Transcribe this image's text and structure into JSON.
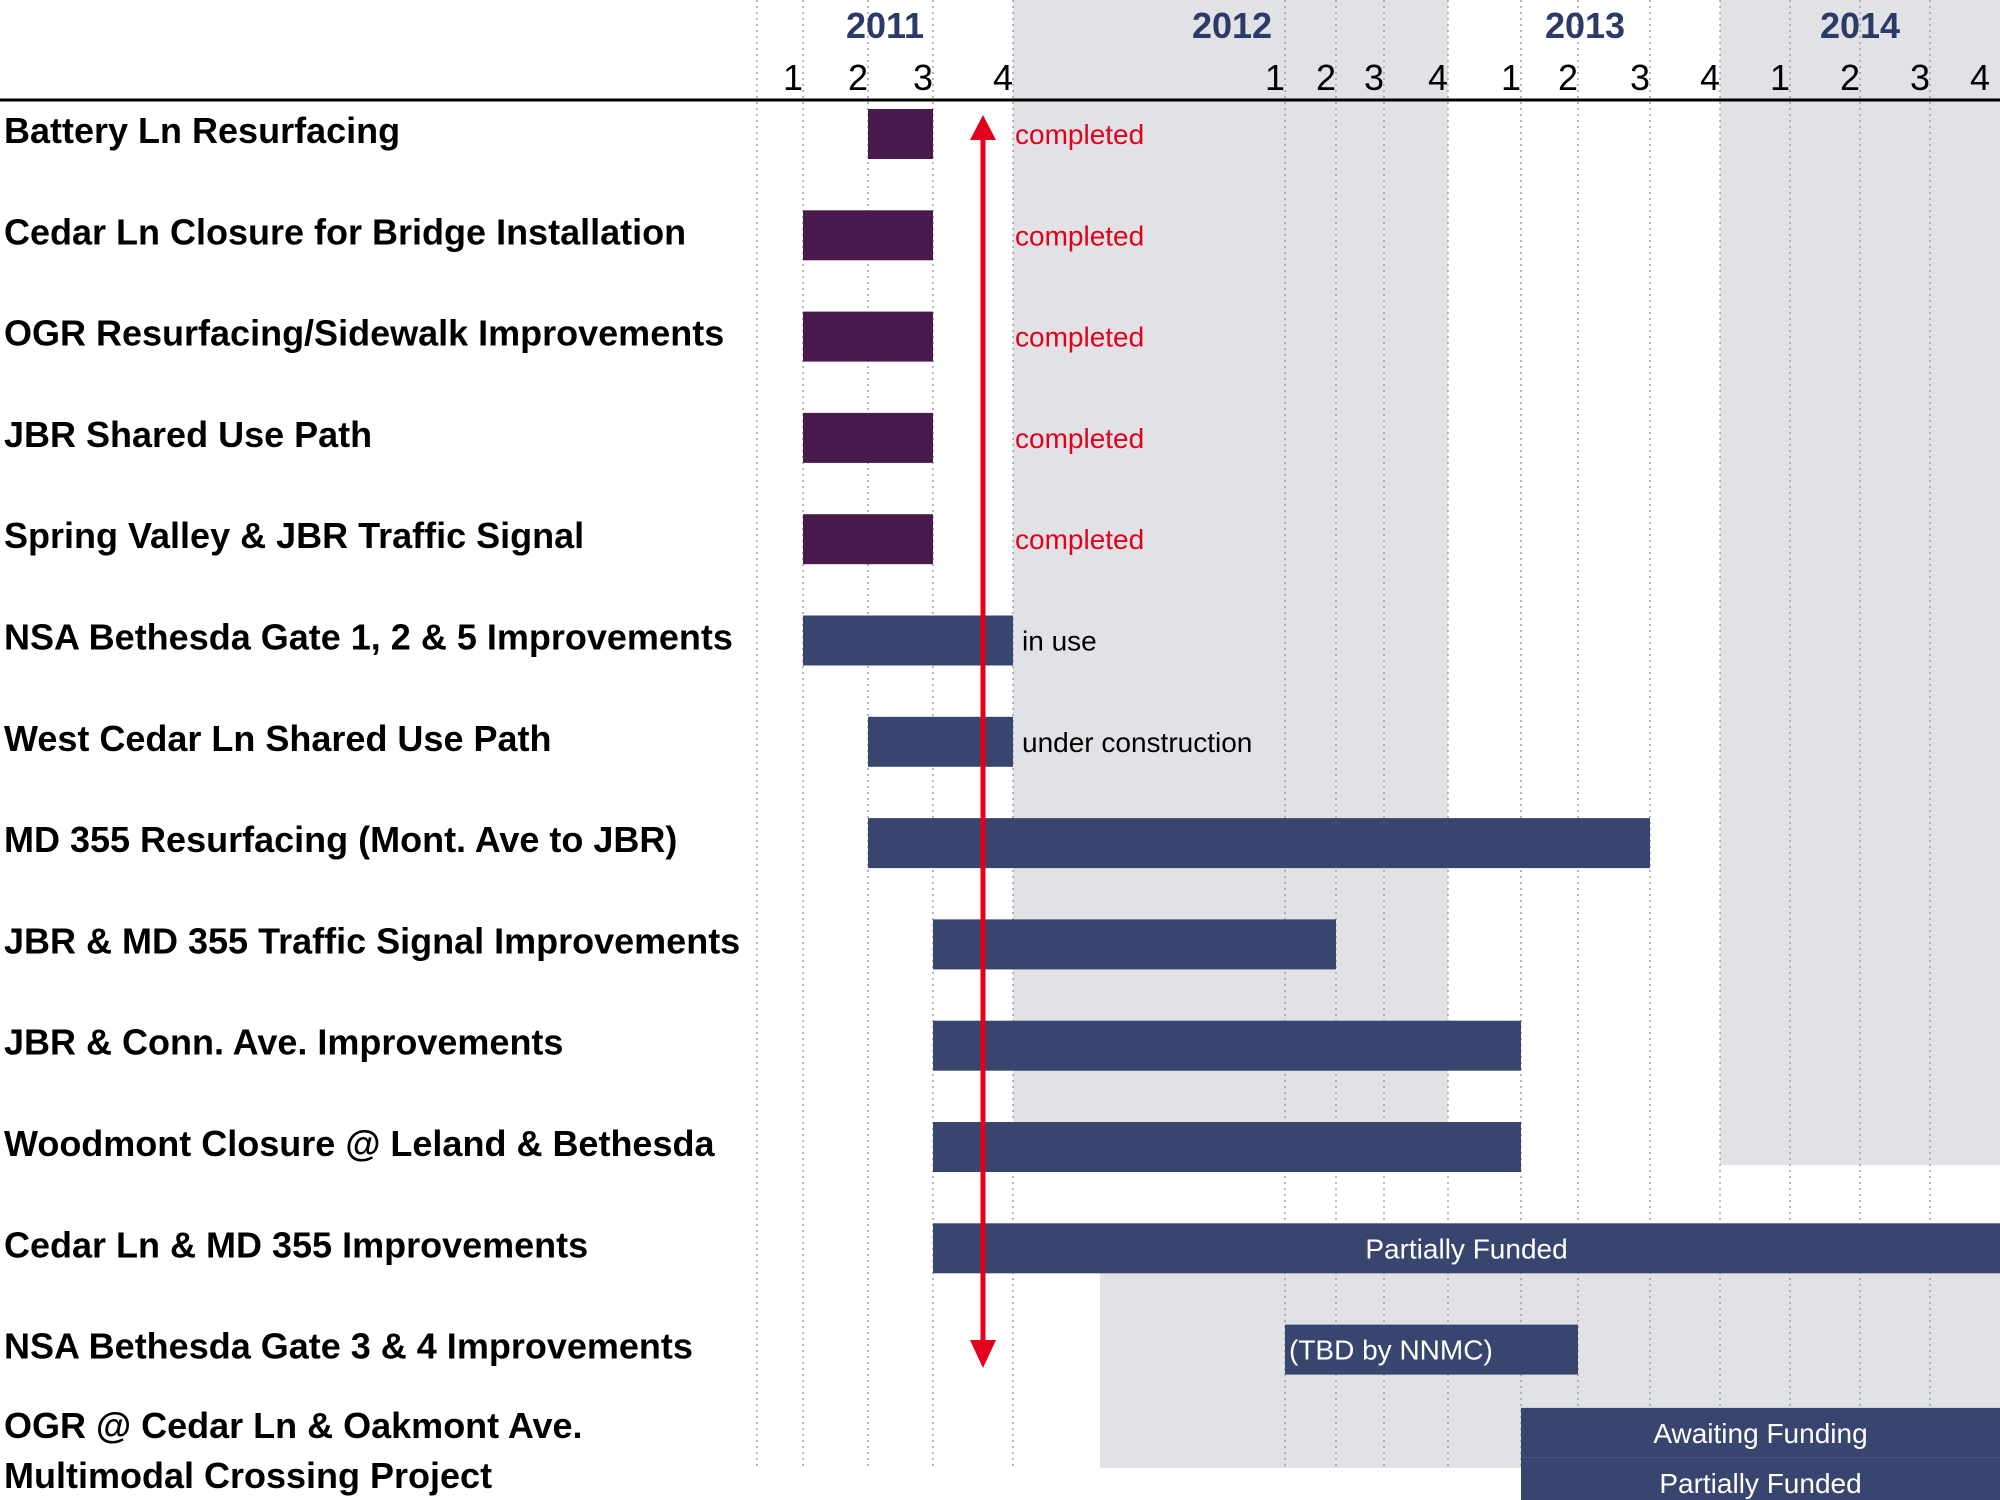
{
  "chart_data": {
    "type": "gantt",
    "years": [
      "2011",
      "2012",
      "2013",
      "2014"
    ],
    "quarter_labels": [
      {
        "label": "1",
        "x": 2011.0
      },
      {
        "label": "2",
        "x": 2011.25
      },
      {
        "label": "3",
        "x": 2011.5
      },
      {
        "label": "4",
        "x": 2011.75
      },
      {
        "label": "1",
        "x": 2012.0
      },
      {
        "label": "2",
        "x": 2012.25
      },
      {
        "label": "3",
        "x": 2012.5
      },
      {
        "label": "4",
        "x": 2012.75
      },
      {
        "label": "1",
        "x": 2013.0
      },
      {
        "label": "2",
        "x": 2013.25
      },
      {
        "label": "3",
        "x": 2013.5
      },
      {
        "label": "4",
        "x": 2013.75
      },
      {
        "label": "1",
        "x": 2014.0
      },
      {
        "label": "2",
        "x": 2014.25
      },
      {
        "label": "3",
        "x": 2014.5
      },
      {
        "label": "4",
        "x": 2014.75
      }
    ],
    "shaded_years": [
      "2012",
      "2014"
    ],
    "current_marker": 2011.75,
    "colors": {
      "completed": "#4a1a4e",
      "active": "#38466f",
      "shade": "#e0e2e5",
      "marker": "#e3001b",
      "status_red": "#e3001b"
    },
    "tasks": [
      {
        "name": "Battery Ln Resurfacing",
        "start": 2011.25,
        "end": 2011.5,
        "kind": "completed",
        "status": "completed"
      },
      {
        "name": "Cedar Ln Closure for  Bridge Installation",
        "start": 2011.0,
        "end": 2011.5,
        "kind": "completed",
        "status": "completed"
      },
      {
        "name": "OGR Resurfacing/Sidewalk Improvements",
        "start": 2011.0,
        "end": 2011.5,
        "kind": "completed",
        "status": "completed"
      },
      {
        "name": "JBR Shared Use Path",
        "start": 2011.0,
        "end": 2011.5,
        "kind": "completed",
        "status": "completed"
      },
      {
        "name": "Spring Valley & JBR Traffic Signal",
        "start": 2011.0,
        "end": 2011.5,
        "kind": "completed",
        "status": "completed"
      },
      {
        "name": "NSA Bethesda Gate 1, 2 & 5 Improvements",
        "start": 2011.0,
        "end": 2011.75,
        "kind": "active",
        "status": "in use"
      },
      {
        "name": "West Cedar Ln Shared Use Path",
        "start": 2011.25,
        "end": 2011.75,
        "kind": "active",
        "status": "under construction"
      },
      {
        "name": "MD 355 Resurfacing (Mont. Ave to JBR)",
        "start": 2011.25,
        "end": 2013.5,
        "kind": "active",
        "status": ""
      },
      {
        "name": "JBR & MD 355 Traffic Signal Improvements",
        "start": 2011.5,
        "end": 2012.25,
        "kind": "active",
        "status": ""
      },
      {
        "name": "JBR & Conn. Ave. Improvements",
        "start": 2011.5,
        "end": 2013.0,
        "kind": "active",
        "status": ""
      },
      {
        "name": "Woodmont Closure @ Leland & Bethesda",
        "start": 2011.5,
        "end": 2013.0,
        "kind": "active",
        "status": ""
      },
      {
        "name": "Cedar Ln & MD 355 Improvements",
        "start": 2011.5,
        "end": 2015.0,
        "kind": "active",
        "status": "Partially Funded"
      },
      {
        "name": "NSA Bethesda Gate 3 & 4 Improvements",
        "start": 2012.0,
        "end": 2013.25,
        "kind": "active",
        "status": "(TBD by NNMC)"
      },
      {
        "name": "OGR @ Cedar Ln & Oakmont Ave.",
        "start": 2013.0,
        "end": 2015.0,
        "kind": "active",
        "status": "Awaiting Funding"
      },
      {
        "name": "Multimodal Crossing Project",
        "start": 2013.0,
        "end": 2015.0,
        "kind": "active",
        "status": "Partially Funded"
      }
    ]
  }
}
